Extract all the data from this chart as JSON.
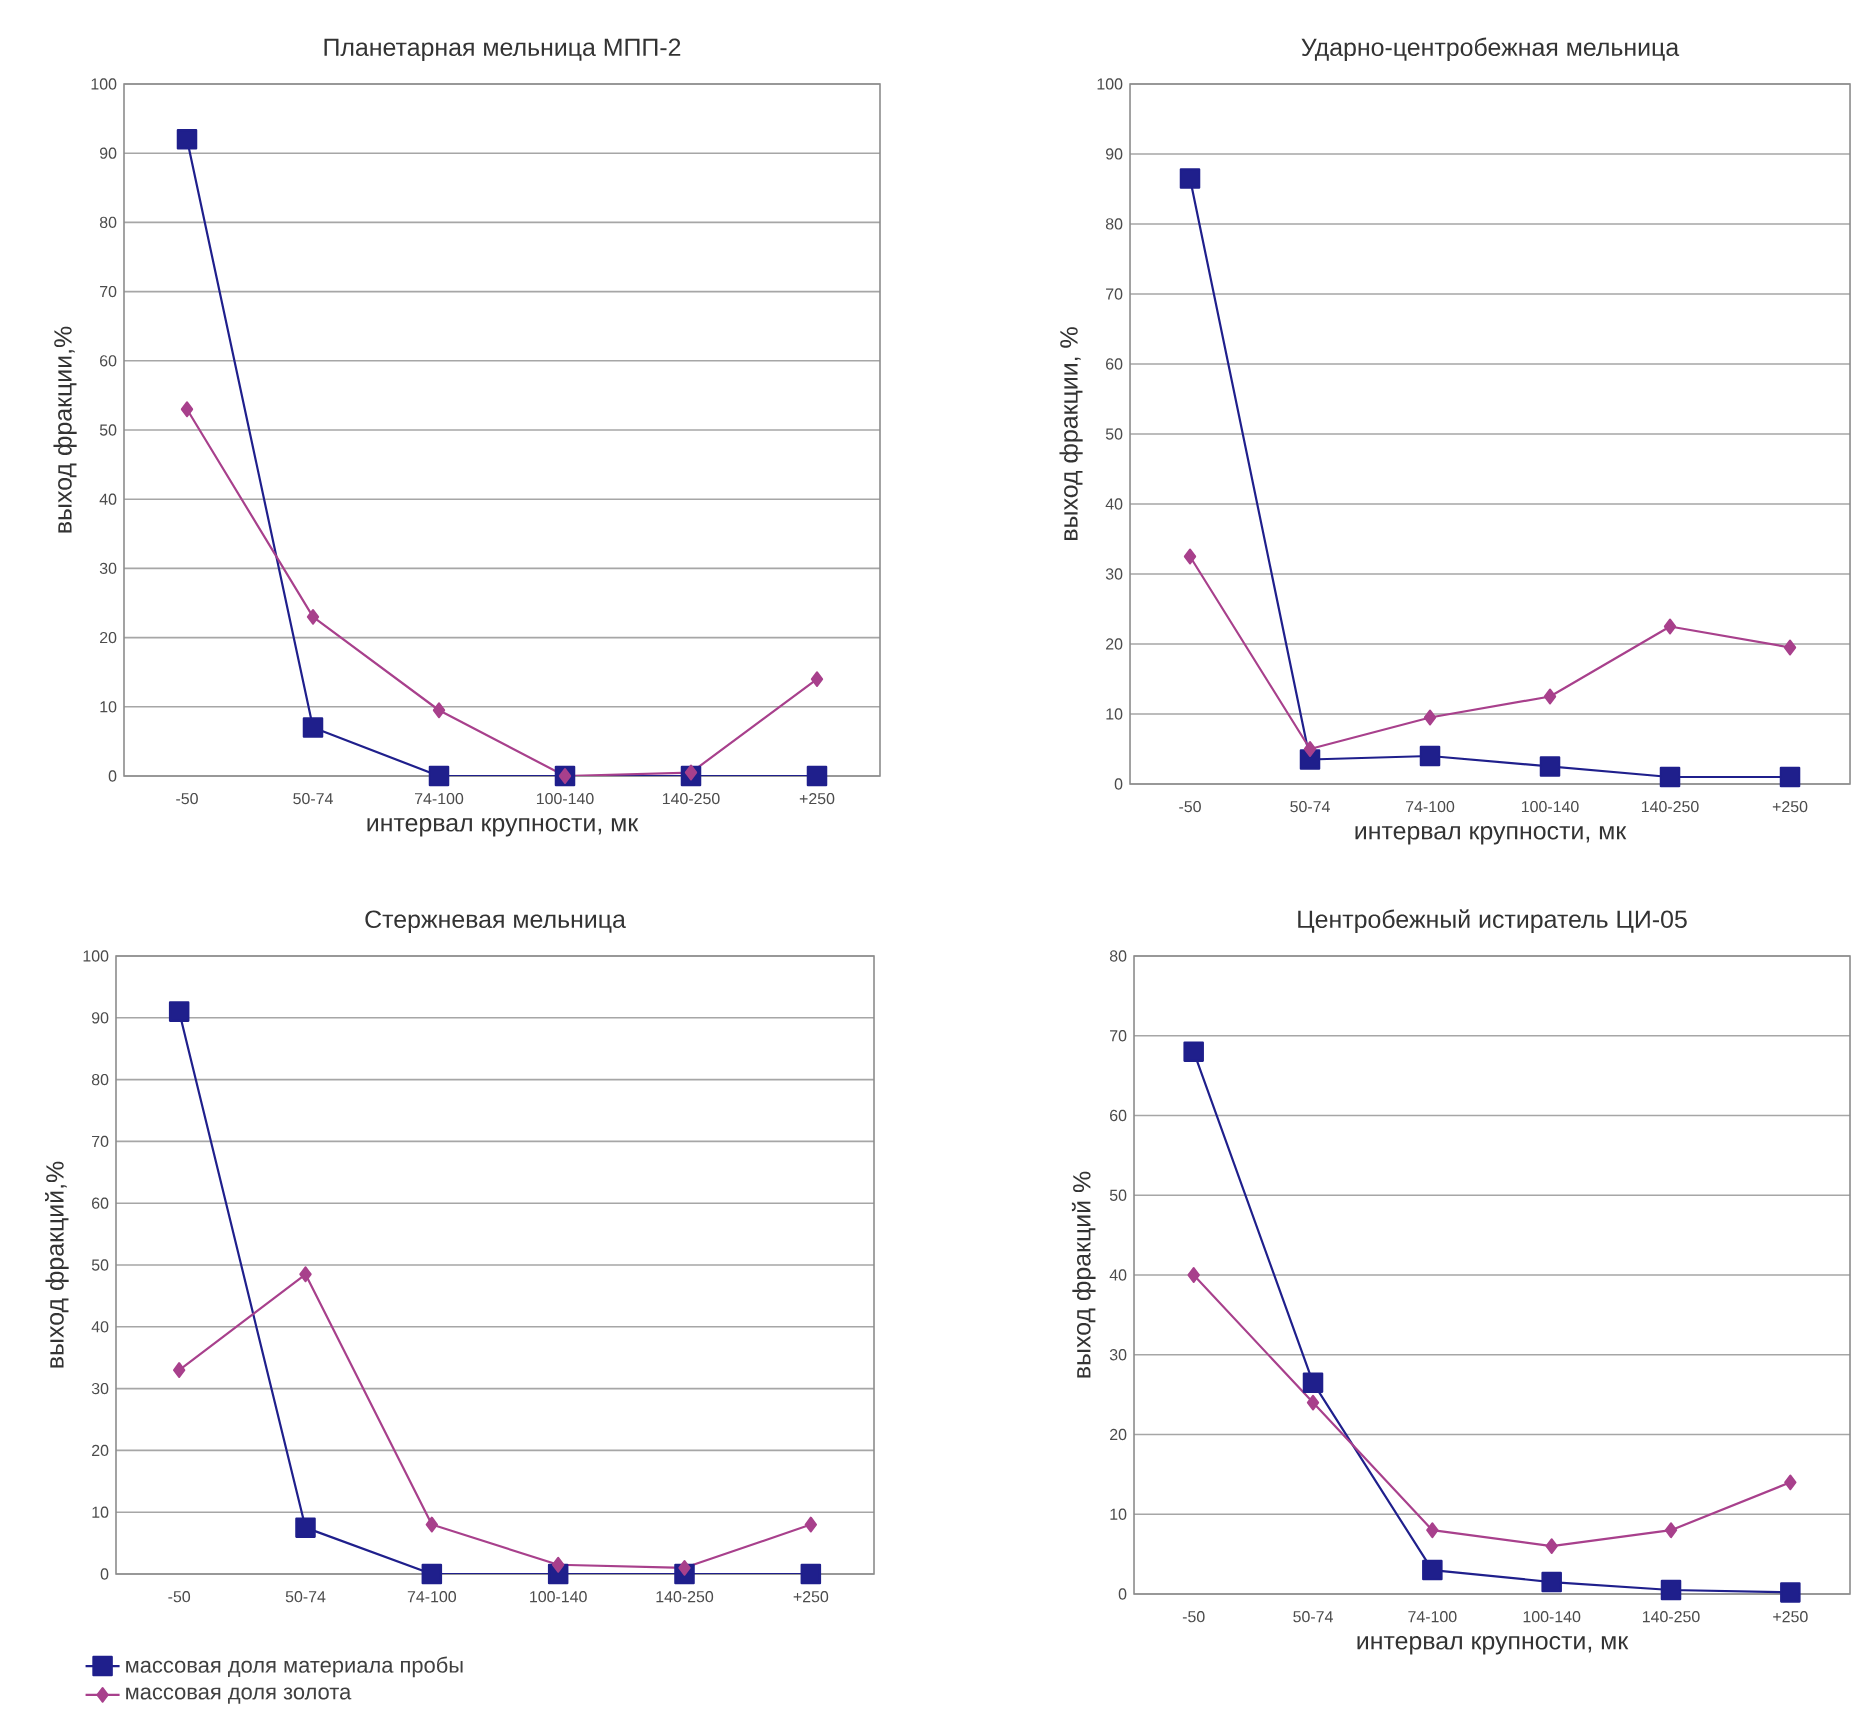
{
  "chart_data": [
    {
      "type": "line",
      "title": "Планетарная мельница МПП-2",
      "xlabel": "интервал крупности, мк",
      "ylabel": "выход фракции,%",
      "categories": [
        "-50",
        "50-74",
        "74-100",
        "100-140",
        "140-250",
        "+250"
      ],
      "ylim": [
        0,
        100
      ],
      "yticks": [
        0,
        10,
        20,
        30,
        40,
        50,
        60,
        70,
        80,
        90,
        100
      ],
      "grid": "y",
      "line_style": "solid",
      "series": [
        {
          "color": "#1f1f8c",
          "marker": "square",
          "values": [
            92,
            7,
            0,
            0,
            0,
            0
          ]
        },
        {
          "color": "#a8408c",
          "marker": "diamond",
          "values": [
            53,
            23,
            9.5,
            0,
            0.5,
            14
          ]
        }
      ]
    },
    {
      "type": "line",
      "title": "Ударно-центробежная мельница",
      "xlabel": "интервал крупности, мк",
      "ylabel": "выход фракции, %",
      "categories": [
        "-50",
        "50-74",
        "74-100",
        "100-140",
        "140-250",
        "+250"
      ],
      "ylim": [
        0,
        100
      ],
      "yticks": [
        0,
        10,
        20,
        30,
        40,
        50,
        60,
        70,
        80,
        90,
        100
      ],
      "grid": "y",
      "line_style": "solid",
      "series": [
        {
          "color": "#1f1f8c",
          "marker": "square",
          "values": [
            86.5,
            3.5,
            4,
            2.5,
            1,
            1
          ]
        },
        {
          "color": "#a8408c",
          "marker": "diamond",
          "values": [
            32.5,
            5,
            9.5,
            12.5,
            22.5,
            19.5
          ]
        }
      ]
    },
    {
      "type": "line",
      "title": "Стержневая мельница",
      "ylabel": "выход фракций,%",
      "categories": [
        "-50",
        "50-74",
        "74-100",
        "100-140",
        "140-250",
        "+250"
      ],
      "ylim": [
        0,
        100
      ],
      "yticks": [
        0,
        10,
        20,
        30,
        40,
        50,
        60,
        70,
        80,
        90,
        100
      ],
      "grid": "y",
      "line_style": "solid",
      "legend": "bottom",
      "series": [
        {
          "name": "массовая доля материала пробы",
          "color": "#1f1f8c",
          "marker": "square",
          "values": [
            91,
            7.5,
            0,
            0,
            0,
            0
          ]
        },
        {
          "name": "массовая доля золота",
          "color": "#a8408c",
          "marker": "diamond",
          "values": [
            33,
            48.5,
            8,
            1.5,
            1,
            8
          ]
        }
      ]
    },
    {
      "type": "line",
      "title": "Центробежный истиратель ЦИ-05",
      "xlabel": "интервал крупности, мк",
      "ylabel": "выход фракций %",
      "categories": [
        "-50",
        "50-74",
        "74-100",
        "100-140",
        "140-250",
        "+250"
      ],
      "ylim": [
        0,
        80
      ],
      "yticks": [
        0,
        10,
        20,
        30,
        40,
        50,
        60,
        70,
        80
      ],
      "grid": "y",
      "line_style": "solid",
      "series": [
        {
          "color": "#1f1f8c",
          "marker": "square",
          "values": [
            68,
            26.5,
            3,
            1.5,
            0.5,
            0.2
          ]
        },
        {
          "color": "#a8408c",
          "marker": "diamond",
          "values": [
            40,
            24,
            8,
            6,
            8,
            14
          ]
        }
      ]
    }
  ]
}
